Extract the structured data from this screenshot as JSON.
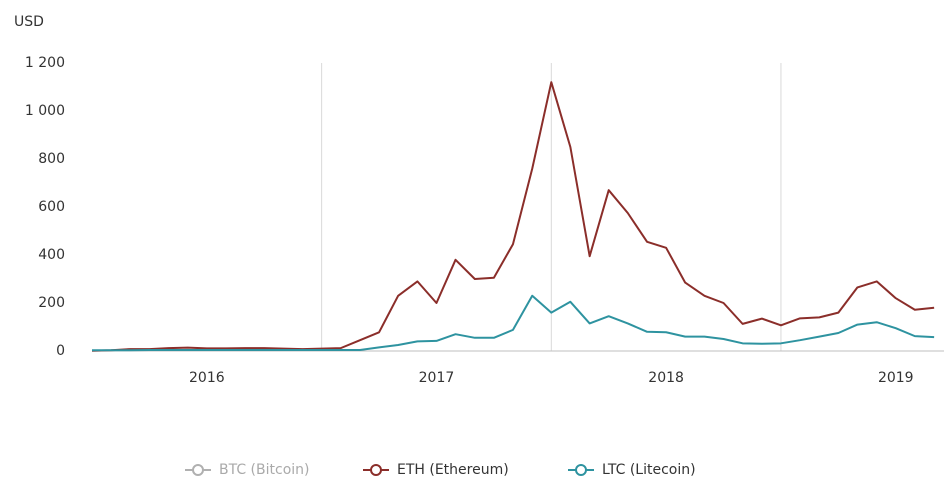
{
  "chart_data": {
    "type": "line",
    "y_unit": "USD",
    "x": [
      2016.0,
      2016.083,
      2016.167,
      2016.25,
      2016.333,
      2016.417,
      2016.5,
      2016.583,
      2016.667,
      2016.75,
      2016.833,
      2016.917,
      2017.0,
      2017.083,
      2017.167,
      2017.25,
      2017.333,
      2017.417,
      2017.5,
      2017.583,
      2017.667,
      2017.75,
      2017.833,
      2017.917,
      2018.0,
      2018.083,
      2018.167,
      2018.25,
      2018.333,
      2018.417,
      2018.5,
      2018.583,
      2018.667,
      2018.75,
      2018.833,
      2018.917,
      2019.0,
      2019.083,
      2019.167,
      2019.25,
      2019.333,
      2019.417,
      2019.5,
      2019.583,
      2019.667
    ],
    "series": [
      {
        "name": "ETH (Ethereum)",
        "color": "#8b2e2a",
        "values": [
          1,
          3,
          8,
          8,
          12,
          14,
          11,
          11,
          12,
          12,
          10,
          8,
          10,
          12,
          45,
          78,
          230,
          290,
          200,
          380,
          300,
          305,
          445,
          760,
          1120,
          850,
          395,
          670,
          575,
          455,
          430,
          285,
          230,
          200,
          113,
          135,
          107,
          136,
          140,
          160,
          265,
          290,
          220,
          172,
          180
        ]
      },
      {
        "name": "LTC (Litecoin)",
        "color": "#2e93a0",
        "values": [
          3,
          3,
          3,
          4,
          4,
          4,
          4,
          4,
          4,
          4,
          4,
          4,
          4,
          4,
          4,
          15,
          25,
          40,
          42,
          70,
          55,
          55,
          88,
          230,
          160,
          205,
          115,
          145,
          115,
          80,
          78,
          60,
          60,
          50,
          32,
          30,
          32,
          45,
          60,
          75,
          110,
          120,
          95,
          62,
          58
        ]
      }
    ],
    "hidden_series": [
      {
        "name": "BTC (Bitcoin)",
        "color": "#b0b0b0"
      }
    ],
    "xlim": [
      2016.0,
      2019.71
    ],
    "xticks": [
      {
        "value": 2016.5,
        "label": "2016"
      },
      {
        "value": 2017.5,
        "label": "2017"
      },
      {
        "value": 2018.5,
        "label": "2018"
      },
      {
        "value": 2019.5,
        "label": "2019"
      }
    ],
    "xgrid": [
      2017,
      2018,
      2019
    ],
    "ylim": [
      0,
      1200
    ],
    "yticks": [
      0,
      200,
      400,
      600,
      800,
      {
        "value": 1000,
        "label": "1 000"
      },
      {
        "value": 1200,
        "label": "1 200"
      }
    ],
    "legend": "bottom"
  }
}
